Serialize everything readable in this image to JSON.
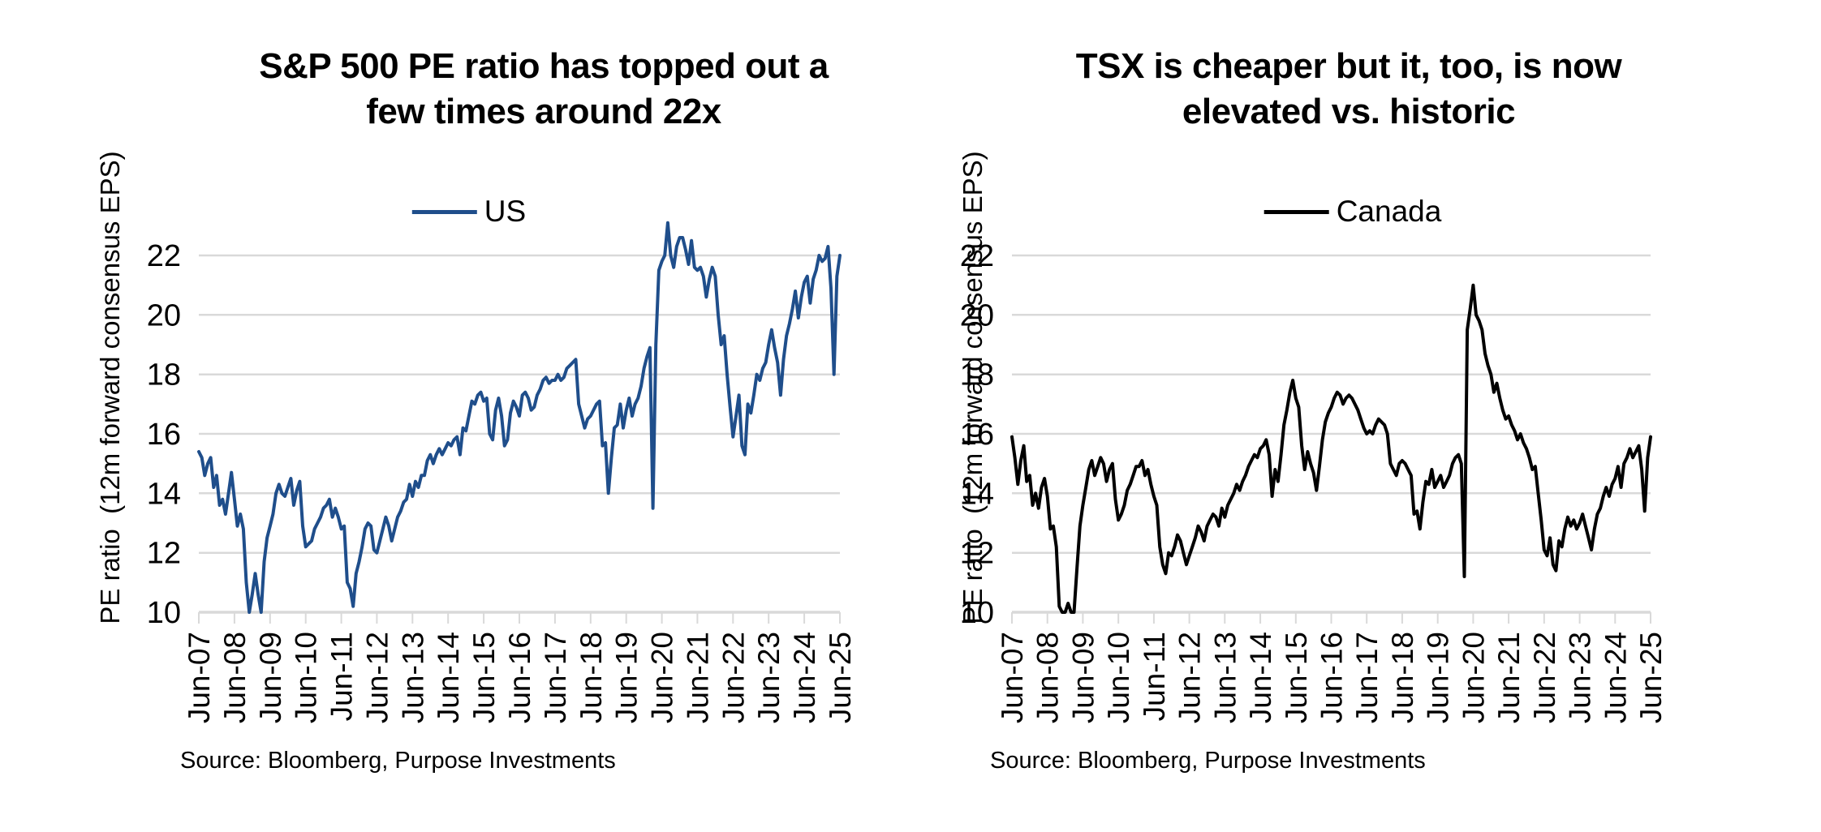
{
  "figure": {
    "background": "#ffffff",
    "gridline_color": "#d9d9d9",
    "text_color": "#000000"
  },
  "panels": [
    {
      "title_line1": "S&P 500 PE ratio has topped out a",
      "title_line2": "few times around 22x",
      "legend_label": "US",
      "y_axis_label": "PE ratio  (12m forward consensus EPS)",
      "source": "Source: Bloomberg, Purpose Investments"
    },
    {
      "title_line1": "TSX is cheaper but it, too, is now",
      "title_line2": "elevated vs. historic",
      "legend_label": "Canada",
      "y_axis_label": "PE ratio  (12m forward consensus EPS)",
      "source": "Source: Bloomberg, Purpose Investments"
    }
  ],
  "chart_data": [
    {
      "type": "line",
      "title": "S&P 500 PE ratio has topped out a few times around 22x",
      "ylabel": "PE ratio (12m forward consensus EPS)",
      "xlabel": "",
      "x_start": "Jun-2007",
      "x_interval": "monthly",
      "x_tick_labels": [
        "Jun-07",
        "Jun-08",
        "Jun-09",
        "Jun-10",
        "Jun-11",
        "Jun-12",
        "Jun-13",
        "Jun-14",
        "Jun-15",
        "Jun-16",
        "Jun-17",
        "Jun-18",
        "Jun-19",
        "Jun-20",
        "Jun-21",
        "Jun-22",
        "Jun-23",
        "Jun-24",
        "Jun-25"
      ],
      "y_ticks": [
        10,
        12,
        14,
        16,
        18,
        20,
        22
      ],
      "ylim": [
        10,
        23.5
      ],
      "grid": "horizontal",
      "legend_position": "top-center",
      "series": [
        {
          "name": "US",
          "color": "#1f4e8b",
          "values": [
            15.4,
            15.2,
            14.6,
            15.0,
            15.2,
            14.2,
            14.6,
            13.6,
            13.8,
            13.3,
            14.0,
            14.7,
            13.8,
            12.9,
            13.3,
            12.8,
            11.0,
            10.0,
            10.6,
            11.3,
            10.6,
            10.0,
            11.7,
            12.5,
            12.9,
            13.3,
            14.0,
            14.3,
            14.0,
            13.9,
            14.2,
            14.5,
            13.6,
            14.1,
            14.4,
            12.9,
            12.2,
            12.3,
            12.4,
            12.8,
            13.0,
            13.2,
            13.5,
            13.6,
            13.8,
            13.2,
            13.5,
            13.2,
            12.8,
            12.9,
            11.0,
            10.8,
            10.2,
            11.3,
            11.7,
            12.2,
            12.8,
            13.0,
            12.9,
            12.1,
            12.0,
            12.4,
            12.8,
            13.2,
            12.9,
            12.4,
            12.8,
            13.2,
            13.4,
            13.7,
            13.8,
            14.3,
            13.9,
            14.4,
            14.2,
            14.6,
            14.6,
            15.1,
            15.3,
            15.0,
            15.3,
            15.5,
            15.3,
            15.5,
            15.7,
            15.6,
            15.8,
            15.9,
            15.3,
            16.2,
            16.1,
            16.6,
            17.1,
            17.0,
            17.3,
            17.4,
            17.1,
            17.2,
            16.0,
            15.8,
            16.8,
            17.2,
            16.6,
            15.6,
            15.8,
            16.7,
            17.1,
            16.9,
            16.6,
            17.3,
            17.4,
            17.2,
            16.8,
            16.9,
            17.3,
            17.5,
            17.8,
            17.9,
            17.7,
            17.8,
            17.8,
            18.0,
            17.8,
            17.9,
            18.2,
            18.3,
            18.4,
            18.5,
            17.0,
            16.6,
            16.2,
            16.5,
            16.6,
            16.8,
            17.0,
            17.1,
            15.6,
            15.7,
            14.0,
            15.2,
            16.2,
            16.3,
            17.0,
            16.2,
            16.8,
            17.2,
            16.6,
            17.0,
            17.2,
            17.6,
            18.2,
            18.6,
            18.9,
            13.5,
            19.0,
            21.5,
            21.8,
            22.0,
            23.1,
            22.0,
            21.6,
            22.3,
            22.6,
            22.6,
            22.2,
            21.7,
            22.5,
            21.6,
            21.5,
            21.6,
            21.3,
            20.6,
            21.2,
            21.6,
            21.3,
            20.0,
            19.0,
            19.3,
            18.0,
            16.9,
            15.9,
            16.6,
            17.3,
            15.6,
            15.3,
            17.0,
            16.7,
            17.3,
            18.0,
            17.8,
            18.2,
            18.4,
            19.0,
            19.5,
            18.9,
            18.4,
            17.3,
            18.5,
            19.3,
            19.7,
            20.2,
            20.8,
            19.9,
            20.6,
            21.1,
            21.3,
            20.4,
            21.2,
            21.5,
            22.0,
            21.8,
            21.9,
            22.3,
            20.9,
            18.0,
            21.3,
            22.0
          ]
        }
      ]
    },
    {
      "type": "line",
      "title": "TSX is cheaper but it, too, is now elevated vs. historic",
      "ylabel": "PE ratio (12m forward consensus EPS)",
      "xlabel": "",
      "x_start": "Jun-2007",
      "x_interval": "monthly",
      "x_tick_labels": [
        "Jun-07",
        "Jun-08",
        "Jun-09",
        "Jun-10",
        "Jun-11",
        "Jun-12",
        "Jun-13",
        "Jun-14",
        "Jun-15",
        "Jun-16",
        "Jun-17",
        "Jun-18",
        "Jun-19",
        "Jun-20",
        "Jun-21",
        "Jun-22",
        "Jun-23",
        "Jun-24",
        "Jun-25"
      ],
      "y_ticks": [
        10,
        12,
        14,
        16,
        18,
        20,
        22
      ],
      "ylim": [
        10,
        23.5
      ],
      "grid": "horizontal",
      "legend_position": "top-center",
      "series": [
        {
          "name": "Canada",
          "color": "#000000",
          "values": [
            15.9,
            15.2,
            14.3,
            15.1,
            15.6,
            14.4,
            14.6,
            13.6,
            14.0,
            13.5,
            14.2,
            14.5,
            13.9,
            12.8,
            12.9,
            12.2,
            10.2,
            9.6,
            9.7,
            10.3,
            9.8,
            9.9,
            11.5,
            12.9,
            13.6,
            14.2,
            14.8,
            15.1,
            14.6,
            14.9,
            15.2,
            15.0,
            14.4,
            14.8,
            15.0,
            13.8,
            13.1,
            13.3,
            13.6,
            14.1,
            14.3,
            14.6,
            14.9,
            14.9,
            15.1,
            14.6,
            14.8,
            14.3,
            13.9,
            13.6,
            12.2,
            11.6,
            11.3,
            12.0,
            11.9,
            12.2,
            12.6,
            12.4,
            12.0,
            11.6,
            11.9,
            12.2,
            12.5,
            12.9,
            12.7,
            12.4,
            12.9,
            13.1,
            13.3,
            13.2,
            12.9,
            13.5,
            13.2,
            13.6,
            13.8,
            14.0,
            14.3,
            14.1,
            14.4,
            14.6,
            14.9,
            15.1,
            15.3,
            15.2,
            15.5,
            15.6,
            15.8,
            15.3,
            13.9,
            14.8,
            14.4,
            15.3,
            16.3,
            16.8,
            17.4,
            17.8,
            17.2,
            16.9,
            15.6,
            14.8,
            15.4,
            15.0,
            14.7,
            14.1,
            14.9,
            15.8,
            16.4,
            16.7,
            16.9,
            17.2,
            17.4,
            17.3,
            17.0,
            17.2,
            17.3,
            17.2,
            17.0,
            16.8,
            16.5,
            16.2,
            16.0,
            16.1,
            16.0,
            16.3,
            16.5,
            16.4,
            16.3,
            16.0,
            15.0,
            14.8,
            14.6,
            15.0,
            15.1,
            15.0,
            14.8,
            14.6,
            13.3,
            13.4,
            12.8,
            13.7,
            14.4,
            14.3,
            14.8,
            14.2,
            14.4,
            14.6,
            14.2,
            14.4,
            14.6,
            15.0,
            15.2,
            15.3,
            15.0,
            11.2,
            19.5,
            20.2,
            21.0,
            20.0,
            19.8,
            19.5,
            18.7,
            18.3,
            18.0,
            17.4,
            17.7,
            17.2,
            16.8,
            16.5,
            16.6,
            16.3,
            16.1,
            15.8,
            16.0,
            15.7,
            15.5,
            15.2,
            14.8,
            14.9,
            14.0,
            13.1,
            12.1,
            11.9,
            12.5,
            11.6,
            11.4,
            12.4,
            12.2,
            12.8,
            13.2,
            12.9,
            13.1,
            12.8,
            13.0,
            13.3,
            12.9,
            12.5,
            12.1,
            12.8,
            13.3,
            13.5,
            13.9,
            14.2,
            13.9,
            14.3,
            14.5,
            14.9,
            14.2,
            15.0,
            15.2,
            15.5,
            15.2,
            15.4,
            15.6,
            14.8,
            13.4,
            15.2,
            15.9
          ]
        }
      ]
    }
  ]
}
